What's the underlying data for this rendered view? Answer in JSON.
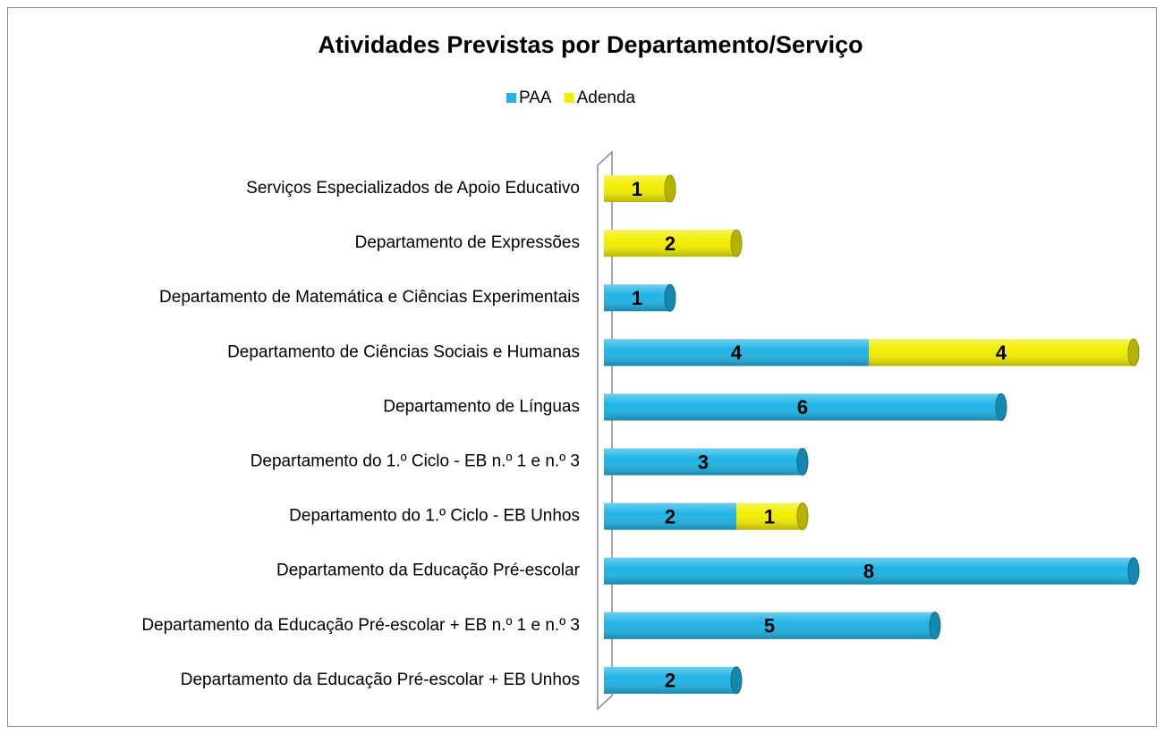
{
  "chart_data": {
    "type": "stacked_barh",
    "title": "Atividades Previstas por Departamento/Serviço",
    "categories": [
      "Serviços Especializados de Apoio Educativo",
      "Departamento de Expressões",
      "Departamento de Matemática e Ciências Experimentais",
      "Departamento de Ciências Sociais e Humanas",
      "Departamento de Línguas",
      "Departamento do 1.º Ciclo - EB n.º 1 e n.º 3",
      "Departamento do 1.º Ciclo - EB Unhos",
      "Departamento da Educação Pré-escolar",
      "Departamento da Educação Pré-escolar + EB n.º 1 e n.º 3",
      "Departamento da Educação Pré-escolar + EB Unhos"
    ],
    "series": [
      {
        "name": "PAA",
        "color": "#1fb4e6",
        "values": [
          null,
          null,
          1,
          4,
          6,
          3,
          2,
          8,
          5,
          2
        ]
      },
      {
        "name": "Adenda",
        "color": "#f2ee00",
        "values": [
          1,
          2,
          null,
          4,
          null,
          null,
          1,
          null,
          null,
          null
        ]
      }
    ],
    "xlim": [
      0,
      8
    ],
    "legend": "top"
  }
}
